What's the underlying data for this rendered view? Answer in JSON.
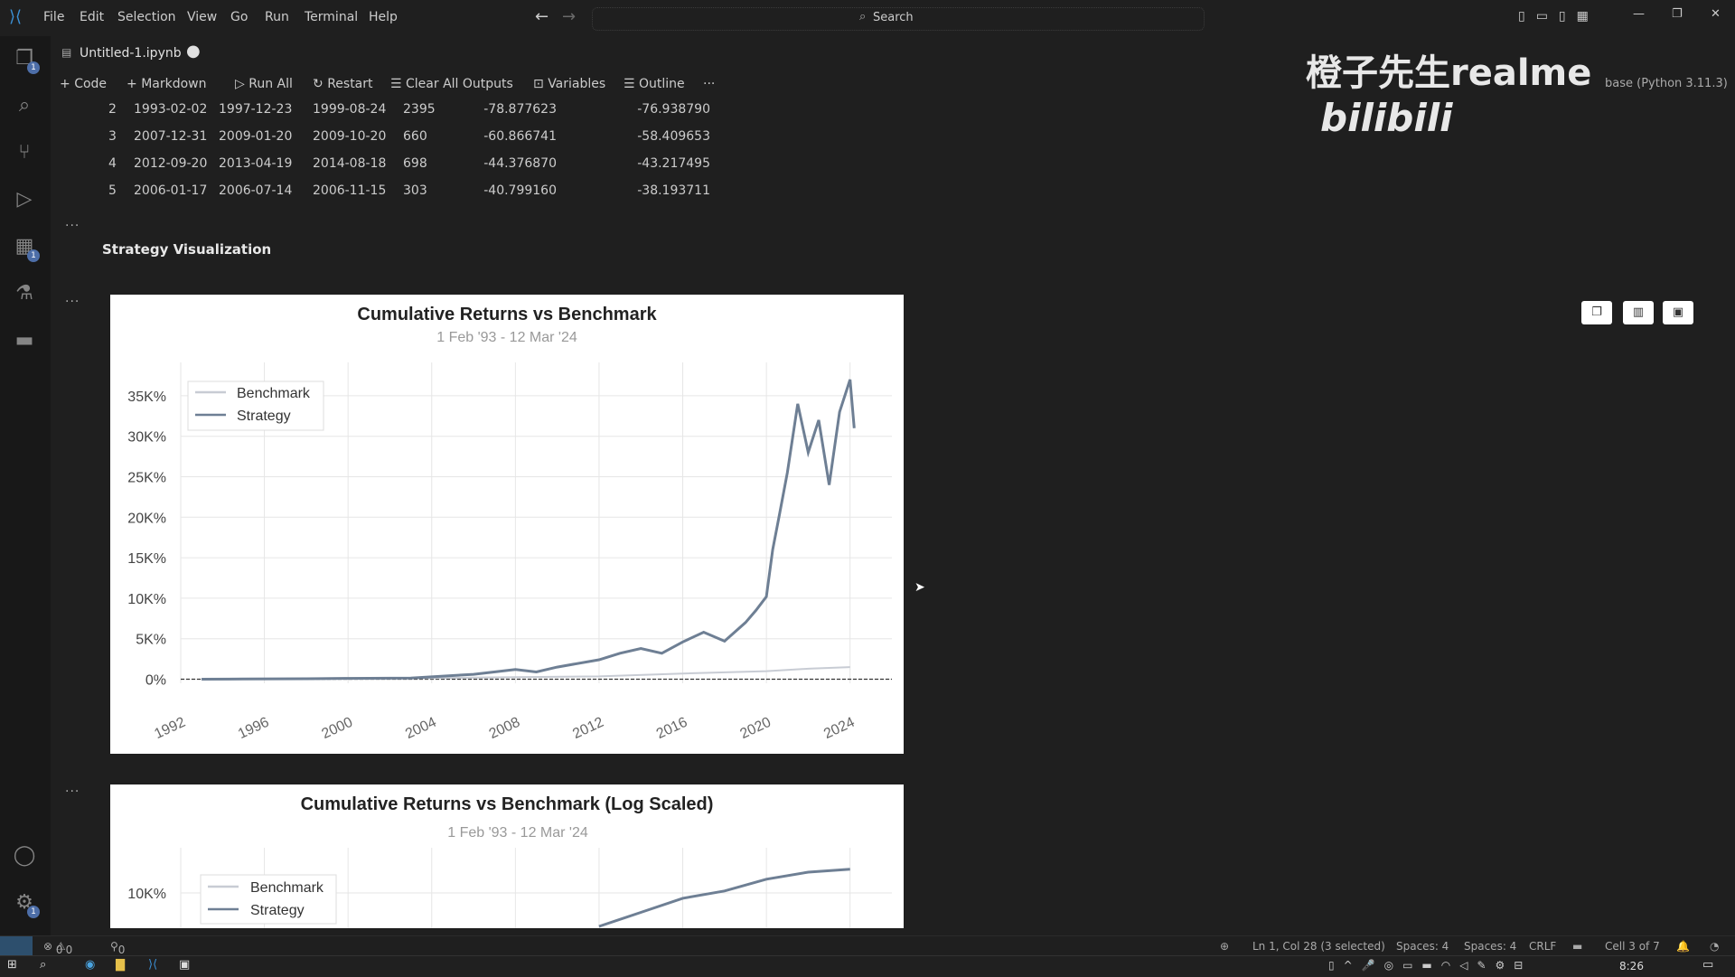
{
  "menu": [
    "File",
    "Edit",
    "Selection",
    "View",
    "Go",
    "Run",
    "Terminal",
    "Help"
  ],
  "search": {
    "placeholder": "Search"
  },
  "tab": {
    "title": "Untitled-1.ipynb"
  },
  "toolbar": {
    "code": "Code",
    "markdown": "Markdown",
    "run_all": "Run All",
    "restart": "Restart",
    "clear_outputs": "Clear All Outputs",
    "variables": "Variables",
    "outline": "Outline",
    "more": "···"
  },
  "kernel": {
    "label": "base (Python 3.11.3)"
  },
  "watermark": {
    "text": "橙子先生realme",
    "brand": "bilibili"
  },
  "table": {
    "rows": [
      [
        "2",
        "1993-02-02",
        "1997-12-23",
        "1999-08-24",
        "2395",
        "-78.877623",
        "-76.938790"
      ],
      [
        "3",
        "2007-12-31",
        "2009-01-20",
        "2009-10-20",
        "660",
        "-60.866741",
        "-58.409653"
      ],
      [
        "4",
        "2012-09-20",
        "2013-04-19",
        "2014-08-18",
        "698",
        "-44.376870",
        "-43.217495"
      ],
      [
        "5",
        "2006-01-17",
        "2006-07-14",
        "2006-11-15",
        "303",
        "-40.799160",
        "-38.193711"
      ]
    ]
  },
  "markdown_heading": "Strategy Visualization",
  "cell_ellipsis": "···",
  "chart_data": [
    {
      "type": "line",
      "title": "Cumulative Returns vs Benchmark",
      "subtitle": "1 Feb '93 - 12 Mar '24",
      "legend": [
        "Benchmark",
        "Strategy"
      ],
      "legend_position": "top-left",
      "grid": true,
      "xticks": [
        "1992",
        "1996",
        "2000",
        "2004",
        "2008",
        "2012",
        "2016",
        "2020",
        "2024"
      ],
      "yticks": [
        "0%",
        "5K%",
        "10K%",
        "15K%",
        "20K%",
        "25K%",
        "30K%",
        "35K%"
      ],
      "ylim": [
        -500,
        38000
      ],
      "xlim": [
        1992,
        2026
      ],
      "series": [
        {
          "name": "Benchmark",
          "color": "#c8ccd4",
          "x": [
            1993,
            1996,
            2000,
            2004,
            2008,
            2012,
            2016,
            2020,
            2022,
            2024
          ],
          "y": [
            0,
            50,
            150,
            150,
            250,
            350,
            700,
            1000,
            1300,
            1500
          ]
        },
        {
          "name": "Strategy",
          "color": "#6e7f94",
          "x": [
            1993,
            1995,
            1998,
            2000,
            2003,
            2006,
            2008,
            2009,
            2010,
            2012,
            2013,
            2014,
            2015,
            2016,
            2017,
            2018,
            2019,
            2019.5,
            2020,
            2020.3,
            2020.6,
            2021,
            2021.5,
            2022,
            2022.5,
            2023,
            2023.5,
            2024,
            2024.2
          ],
          "y": [
            0,
            20,
            60,
            100,
            150,
            600,
            1200,
            900,
            1500,
            2400,
            3200,
            3800,
            3200,
            4600,
            5800,
            4700,
            7000,
            8500,
            10200,
            16000,
            20000,
            25500,
            34000,
            28000,
            32000,
            24000,
            33000,
            37000,
            31000
          ]
        }
      ]
    },
    {
      "type": "line",
      "title": "Cumulative Returns vs Benchmark (Log Scaled)",
      "subtitle": "1 Feb '93 - 12 Mar '24",
      "legend": [
        "Benchmark",
        "Strategy"
      ],
      "legend_position": "top-left",
      "grid": true,
      "yticks": [
        "10K%"
      ],
      "series": [
        {
          "name": "Strategy",
          "color": "#6e7f94",
          "x": [
            2012,
            2014,
            2016,
            2018,
            2020,
            2022,
            2024
          ],
          "y": [
            1500,
            2600,
            4500,
            6000,
            9500,
            12500,
            14000
          ]
        }
      ]
    }
  ],
  "status": {
    "errors": "0",
    "warnings": "0",
    "ports": "0",
    "position": "Ln 1, Col 28 (3 selected)",
    "spaces1": "Spaces: 4",
    "spaces2": "Spaces: 4",
    "eol": "CRLF",
    "cell": "Cell 3 of 7"
  },
  "clock": "8:26"
}
